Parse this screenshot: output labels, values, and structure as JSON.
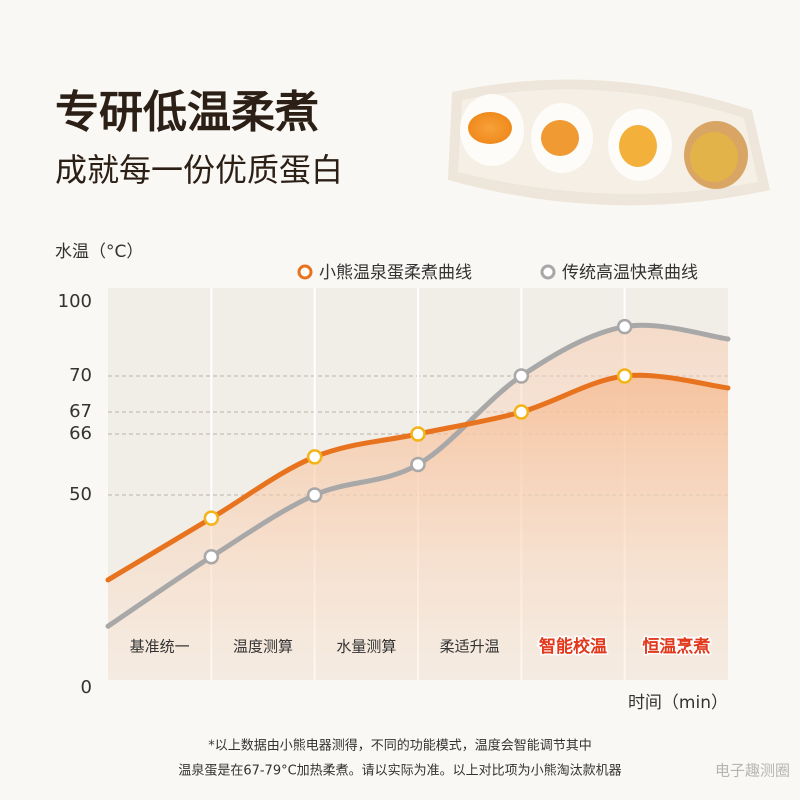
{
  "chart_data": {
    "type": "line",
    "title": "专研低温柔煮",
    "subtitle": "成就每一份优质蛋白",
    "y_label": "水温（°C）",
    "x_label": "时间（min）",
    "stages": [
      "基准统一",
      "温度测算",
      "水量测算",
      "柔适升温",
      "智能校温",
      "恒温烹煮"
    ],
    "series": [
      {
        "name": "小熊温泉蛋柔煮曲线",
        "color": "#e8731f",
        "values": [
          28,
          44,
          60,
          66,
          67,
          70,
          69
        ]
      },
      {
        "name": "传统高温快煮曲线",
        "color": "#a8a8a8",
        "values": [
          16,
          34,
          50,
          58,
          70,
          90,
          85
        ]
      }
    ],
    "ylim": [
      0,
      100
    ],
    "yticks": [
      0,
      50,
      66,
      67,
      70,
      100
    ],
    "grid": true,
    "legend": "top-right",
    "footnote": [
      "*以上数据由小熊电器测得，不同的功能模式，温度会智能调节其中",
      "温泉蛋是在67-79°C加热柔煮。请以实际为准。以上对比项为小熊淘汰款机器"
    ],
    "watermark": "电子趣测圈"
  }
}
